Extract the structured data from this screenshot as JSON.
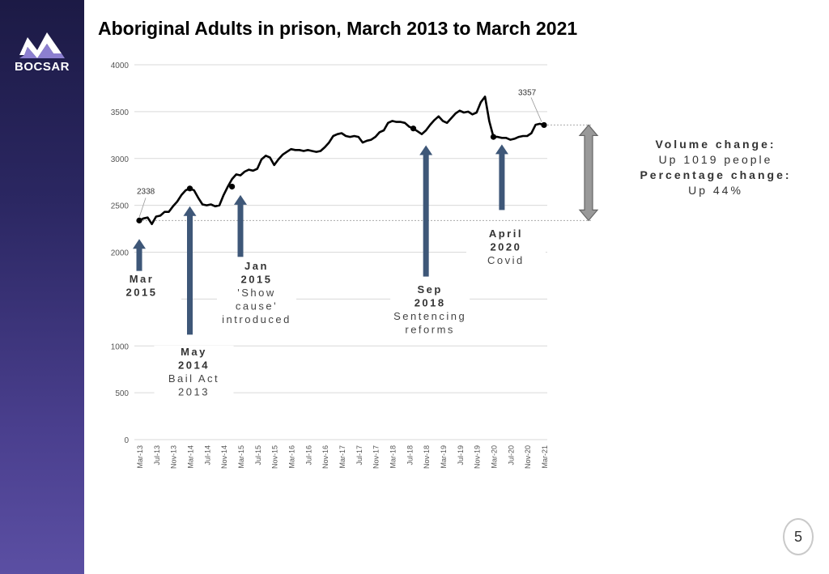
{
  "brand": {
    "name": "BOCSAR"
  },
  "page": {
    "number": "5"
  },
  "colors": {
    "line": "#000000",
    "arrow": "#3e5778",
    "double_arrow": "#999999",
    "sidebar": "#2b2762",
    "grid": "#d9d9d9"
  },
  "chart_data": {
    "type": "line",
    "title": "Aboriginal Adults in prison, March 2013 to March 2021",
    "xlabel": "",
    "ylabel": "",
    "ylim": [
      0,
      4000
    ],
    "yticks": [
      0,
      500,
      1000,
      1500,
      2000,
      2500,
      3000,
      3500,
      4000
    ],
    "ytick_labels": [
      "0",
      "500",
      "1000",
      "",
      "2000",
      "2500",
      "3000",
      "3500",
      "4000"
    ],
    "grid": true,
    "x_tick_labels": [
      "Mar-13",
      "Jul-13",
      "Nov-13",
      "Mar-14",
      "Jul-14",
      "Nov-14",
      "Mar-15",
      "Jul-15",
      "Nov-15",
      "Mar-16",
      "Jul-16",
      "Nov-16",
      "Mar-17",
      "Jul-17",
      "Nov-17",
      "Mar-18",
      "Jul-18",
      "Nov-18",
      "Mar-19",
      "Jul-19",
      "Nov-19",
      "Mar-20",
      "Jul-20",
      "Nov-20",
      "Mar-21"
    ],
    "series": [
      {
        "name": "Aboriginal adults in prison",
        "values": [
          2338,
          2360,
          2370,
          2300,
          2380,
          2390,
          2430,
          2430,
          2490,
          2540,
          2610,
          2660,
          2680,
          2660,
          2580,
          2510,
          2500,
          2510,
          2490,
          2500,
          2610,
          2700,
          2780,
          2830,
          2820,
          2860,
          2880,
          2870,
          2890,
          2990,
          3030,
          3010,
          2930,
          2990,
          3040,
          3070,
          3100,
          3090,
          3090,
          3080,
          3090,
          3080,
          3070,
          3080,
          3120,
          3170,
          3240,
          3260,
          3270,
          3240,
          3230,
          3240,
          3230,
          3170,
          3190,
          3200,
          3230,
          3280,
          3300,
          3380,
          3400,
          3390,
          3390,
          3380,
          3340,
          3320,
          3290,
          3260,
          3300,
          3360,
          3410,
          3450,
          3400,
          3380,
          3430,
          3480,
          3510,
          3490,
          3500,
          3470,
          3490,
          3600,
          3660,
          3400,
          3230,
          3230,
          3220,
          3220,
          3200,
          3210,
          3230,
          3240,
          3240,
          3270,
          3360,
          3370,
          3357
        ]
      }
    ],
    "markers": [
      {
        "index": 0,
        "value": 2338
      },
      {
        "index": 12,
        "value": 2680
      },
      {
        "index": 22,
        "value": 2700
      },
      {
        "index": 65,
        "value": 3320
      },
      {
        "index": 84,
        "value": 3230
      },
      {
        "index": 96,
        "value": 3357
      }
    ],
    "data_labels": [
      {
        "index": 0,
        "value": 2338,
        "text": "2338"
      },
      {
        "index": 96,
        "value": 3357,
        "text": "3357"
      }
    ],
    "annotations": [
      {
        "index": 0,
        "lines": [
          "Mar",
          "2015"
        ],
        "bold_lines": 2,
        "arrow_from": 1800,
        "arrow_to": 2140
      },
      {
        "index": 12,
        "lines": [
          "May",
          "2014",
          "Bail Act",
          "2013"
        ],
        "bold_lines": 2,
        "arrow_from": 1120,
        "arrow_to": 2490
      },
      {
        "index": 24,
        "lines": [
          "Jan",
          "2015",
          "'Show",
          "cause'",
          "introduced"
        ],
        "bold_lines": 2,
        "arrow_from": 1950,
        "arrow_to": 2610
      },
      {
        "index": 68,
        "lines": [
          "Sep",
          "2018",
          "Sentencing",
          "reforms"
        ],
        "bold_lines": 2,
        "arrow_from": 1740,
        "arrow_to": 3140
      },
      {
        "index": 86,
        "lines": [
          "April",
          "2020",
          "Covid"
        ],
        "bold_lines": 2,
        "arrow_from": 2450,
        "arrow_to": 3150
      }
    ],
    "reference_lines": [
      {
        "value": 3357,
        "style": "dotted"
      },
      {
        "value": 2338,
        "style": "dotted"
      }
    ],
    "summary": {
      "volume_label": "Volume change:",
      "volume_text": "Up 1019 people",
      "percent_label": "Percentage change:",
      "percent_text": "Up 44%"
    }
  }
}
